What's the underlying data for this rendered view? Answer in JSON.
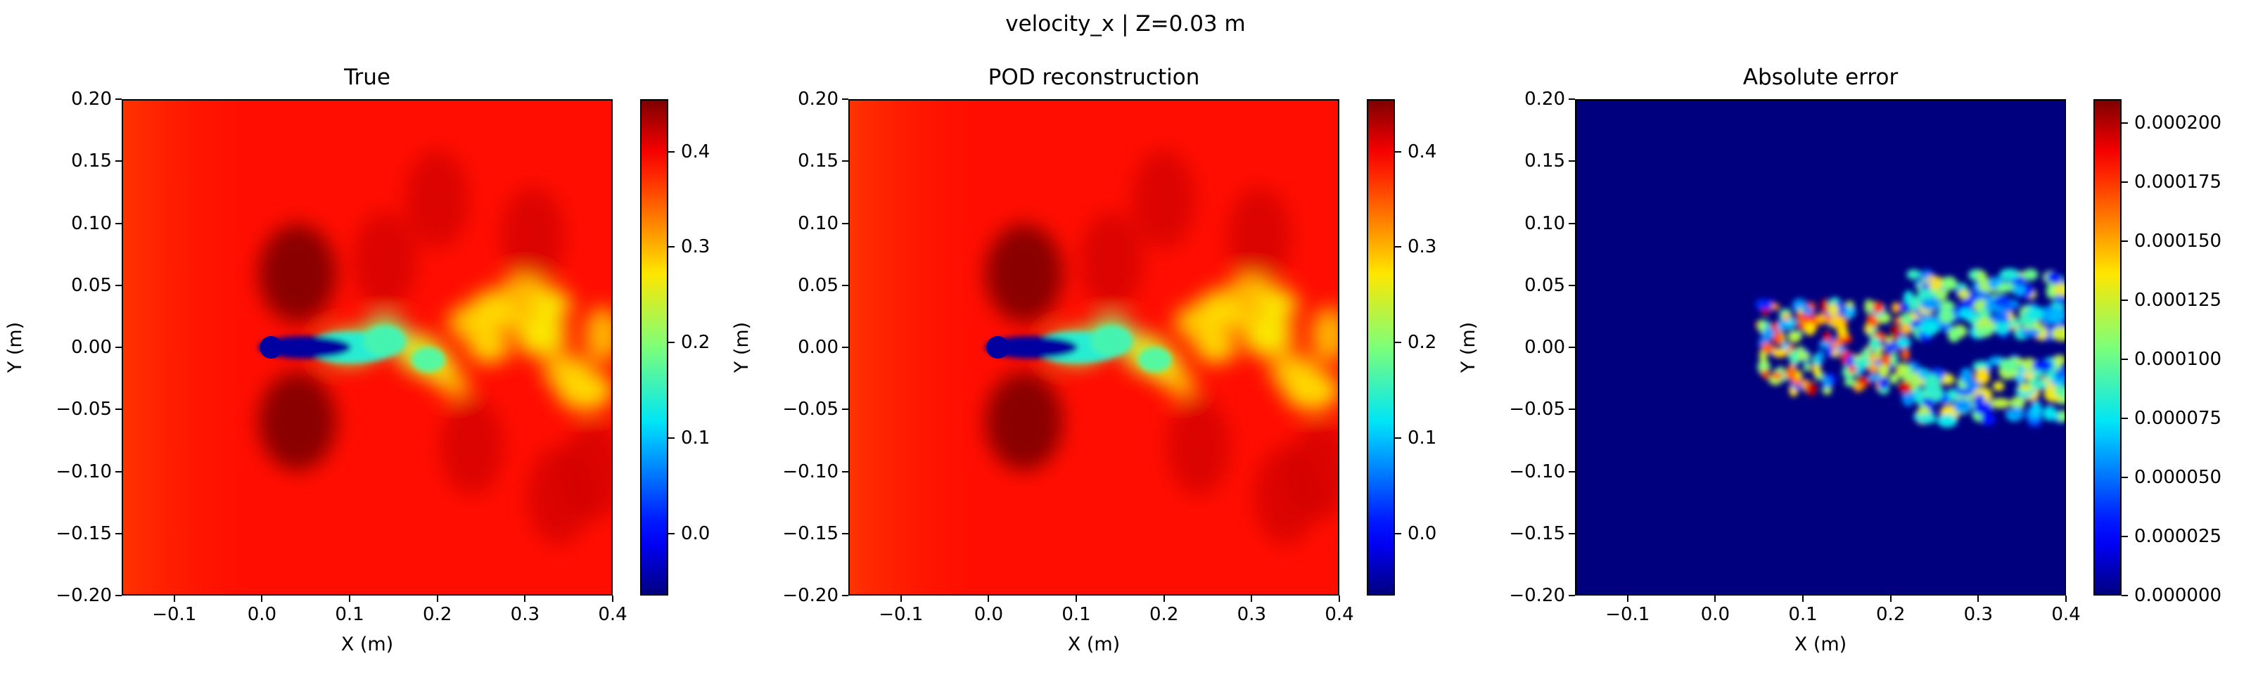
{
  "figure_title": "velocity_x | Z=0.03 m",
  "colormap": "jet",
  "colors": {
    "jet": [
      "#00007f",
      "#0000ff",
      "#007fff",
      "#00ffff",
      "#7fff7f",
      "#ffff00",
      "#ff7f00",
      "#ff0000",
      "#7f0000"
    ]
  },
  "chart_data": [
    {
      "type": "heatmap",
      "title": "True",
      "field": "velocity_x",
      "xlabel": "X (m)",
      "ylabel": "Y (m)",
      "xlim": [
        -0.16,
        0.4
      ],
      "ylim": [
        -0.2,
        0.2
      ],
      "xticks": [
        -0.1,
        0.0,
        0.1,
        0.2,
        0.3,
        0.4
      ],
      "xtick_labels": [
        "−0.1",
        "0.0",
        "0.1",
        "0.2",
        "0.3",
        "0.4"
      ],
      "yticks": [
        -0.2,
        -0.15,
        -0.1,
        -0.05,
        0.0,
        0.05,
        0.1,
        0.15,
        0.2
      ],
      "ytick_labels": [
        "−0.20",
        "−0.15",
        "−0.10",
        "−0.05",
        "0.00",
        "0.05",
        "0.10",
        "0.15",
        "0.20"
      ],
      "colorbar": {
        "range": [
          -0.065,
          0.455
        ],
        "ticks": [
          0.0,
          0.1,
          0.2,
          0.3,
          0.4
        ],
        "tick_labels": [
          "0.0",
          "0.1",
          "0.2",
          "0.3",
          "0.4"
        ]
      },
      "background_value": 0.39,
      "features": [
        {
          "kind": "wake_core",
          "x_start": 0.0,
          "x_end": 0.08,
          "y_center": 0.0,
          "value": -0.05
        },
        {
          "kind": "wake_plume",
          "x_start": 0.08,
          "x_end": 0.4,
          "value_range": [
            0.1,
            0.3
          ]
        },
        {
          "kind": "high_speed_lobe",
          "x": 0.04,
          "y": 0.06,
          "value": 0.45
        },
        {
          "kind": "high_speed_lobe",
          "x": 0.04,
          "y": -0.06,
          "value": 0.45
        }
      ]
    },
    {
      "type": "heatmap",
      "title": "POD reconstruction",
      "field": "velocity_x",
      "xlabel": "X (m)",
      "ylabel": "Y (m)",
      "xlim": [
        -0.16,
        0.4
      ],
      "ylim": [
        -0.2,
        0.2
      ],
      "xticks": [
        -0.1,
        0.0,
        0.1,
        0.2,
        0.3,
        0.4
      ],
      "xtick_labels": [
        "−0.1",
        "0.0",
        "0.1",
        "0.2",
        "0.3",
        "0.4"
      ],
      "yticks": [
        -0.2,
        -0.15,
        -0.1,
        -0.05,
        0.0,
        0.05,
        0.1,
        0.15,
        0.2
      ],
      "ytick_labels": [
        "−0.20",
        "−0.15",
        "−0.10",
        "−0.05",
        "0.00",
        "0.05",
        "0.10",
        "0.15",
        "0.20"
      ],
      "colorbar": {
        "range": [
          -0.065,
          0.455
        ],
        "ticks": [
          0.0,
          0.1,
          0.2,
          0.3,
          0.4
        ],
        "tick_labels": [
          "0.0",
          "0.1",
          "0.2",
          "0.3",
          "0.4"
        ]
      },
      "background_value": 0.39,
      "features": [
        {
          "kind": "wake_core",
          "x_start": 0.0,
          "x_end": 0.08,
          "y_center": 0.0,
          "value": -0.05
        },
        {
          "kind": "wake_plume",
          "x_start": 0.08,
          "x_end": 0.4,
          "value_range": [
            0.1,
            0.3
          ]
        },
        {
          "kind": "high_speed_lobe",
          "x": 0.04,
          "y": 0.06,
          "value": 0.45
        },
        {
          "kind": "high_speed_lobe",
          "x": 0.04,
          "y": -0.06,
          "value": 0.45
        }
      ]
    },
    {
      "type": "heatmap",
      "title": "Absolute error",
      "field": "velocity_x",
      "xlabel": "X (m)",
      "ylabel": "Y (m)",
      "xlim": [
        -0.16,
        0.4
      ],
      "ylim": [
        -0.2,
        0.2
      ],
      "xticks": [
        -0.1,
        0.0,
        0.1,
        0.2,
        0.3,
        0.4
      ],
      "xtick_labels": [
        "−0.1",
        "0.0",
        "0.1",
        "0.2",
        "0.3",
        "0.4"
      ],
      "yticks": [
        -0.2,
        -0.15,
        -0.1,
        -0.05,
        0.0,
        0.05,
        0.1,
        0.15,
        0.2
      ],
      "ytick_labels": [
        "−0.20",
        "−0.15",
        "−0.10",
        "−0.05",
        "0.00",
        "0.05",
        "0.10",
        "0.15",
        "0.20"
      ],
      "colorbar": {
        "range": [
          0.0,
          0.00021
        ],
        "ticks": [
          0.0,
          2.5e-05,
          5e-05,
          7.5e-05,
          0.0001,
          0.000125,
          0.00015,
          0.000175,
          0.0002
        ],
        "tick_labels": [
          "0.000000",
          "0.000025",
          "0.000050",
          "0.000075",
          "0.000100",
          "0.000125",
          "0.000150",
          "0.000175",
          "0.000200"
        ]
      },
      "background_value": 0.0,
      "features": [
        {
          "kind": "error_cluster",
          "x_start": 0.05,
          "x_end": 0.22,
          "y_range": [
            -0.03,
            0.03
          ],
          "peak": 0.0002
        },
        {
          "kind": "error_band",
          "x_start": 0.22,
          "x_end": 0.4,
          "y_range": [
            -0.06,
            0.06
          ],
          "peak": 0.00014
        }
      ]
    }
  ]
}
